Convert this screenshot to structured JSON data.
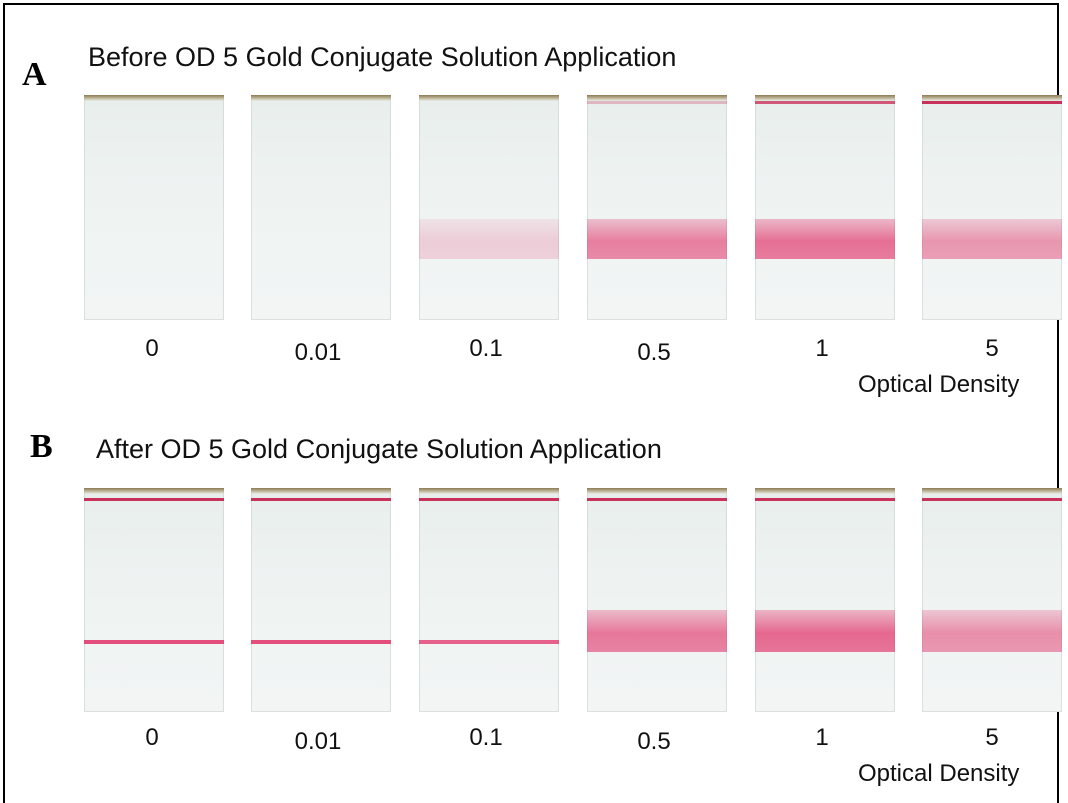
{
  "panel_a": {
    "letter": "A",
    "title": "Before OD 5 Gold Conjugate Solution Application",
    "labels": [
      "0",
      "0.01",
      "0.1",
      "0.5",
      "1",
      "5"
    ],
    "axis_title": "Optical Density",
    "test_band_intensity": [
      0,
      0,
      0.25,
      0.75,
      0.85,
      0.6
    ],
    "control_line_intensity": [
      0,
      0,
      0,
      0.3,
      0.8,
      1
    ]
  },
  "panel_b": {
    "letter": "B",
    "title": "After OD 5 Gold Conjugate Solution Application",
    "labels": [
      "0",
      "0.01",
      "0.1",
      "0.5",
      "1",
      "5"
    ],
    "axis_title": "Optical Density",
    "test_band_intensity": [
      0.9,
      0.9,
      0.8,
      0.8,
      0.9,
      0.65
    ],
    "control_line_intensity": [
      1,
      1,
      1,
      1,
      1,
      1
    ]
  },
  "colors": {
    "band": "#e23c70",
    "control": "#c8325a",
    "strip_bg": "#eef3f2"
  }
}
